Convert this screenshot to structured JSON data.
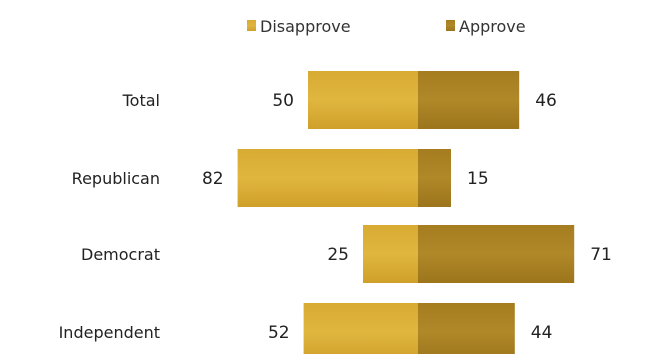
{
  "chart_data": {
    "type": "bar",
    "orientation": "horizontal",
    "stacked": "diverging",
    "categories": [
      "Total",
      "Republican",
      "Democrat",
      "Independent"
    ],
    "series": [
      {
        "name": "Disapprove",
        "values": [
          50,
          82,
          25,
          52
        ],
        "color": "#d4a62c"
      },
      {
        "name": "Approve",
        "values": [
          46,
          15,
          71,
          44
        ],
        "color": "#a47c1f"
      }
    ],
    "legend_position": "top",
    "grid": false
  }
}
